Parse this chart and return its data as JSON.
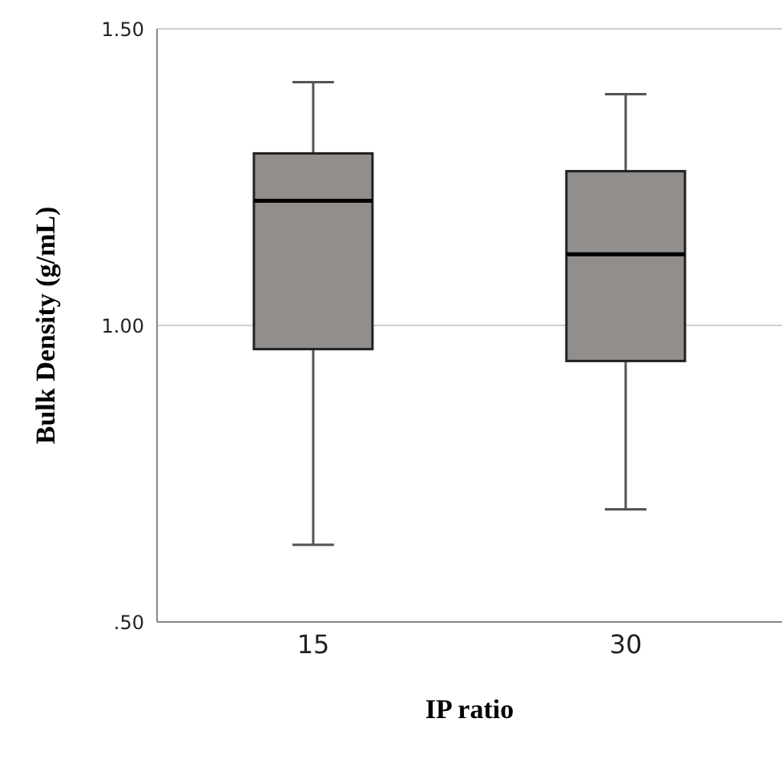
{
  "chart_data": {
    "type": "box",
    "xlabel": "IP ratio",
    "ylabel": "Bulk Density (g/mL)",
    "categories": [
      "15",
      "30"
    ],
    "color": "#928e8c",
    "boxes": [
      {
        "low": 0.63,
        "q1": 0.96,
        "median": 1.21,
        "q3": 1.29,
        "high": 1.41
      },
      {
        "low": 0.69,
        "q1": 0.94,
        "median": 1.12,
        "q3": 1.26,
        "high": 1.39
      }
    ],
    "ylim": [
      0.5,
      1.5
    ],
    "yticks": [
      {
        "value": 0.5,
        "label": ".50"
      },
      {
        "value": 1,
        "label": "1.00"
      },
      {
        "value": 1.5,
        "label": "1.50"
      }
    ],
    "grid": "y"
  }
}
